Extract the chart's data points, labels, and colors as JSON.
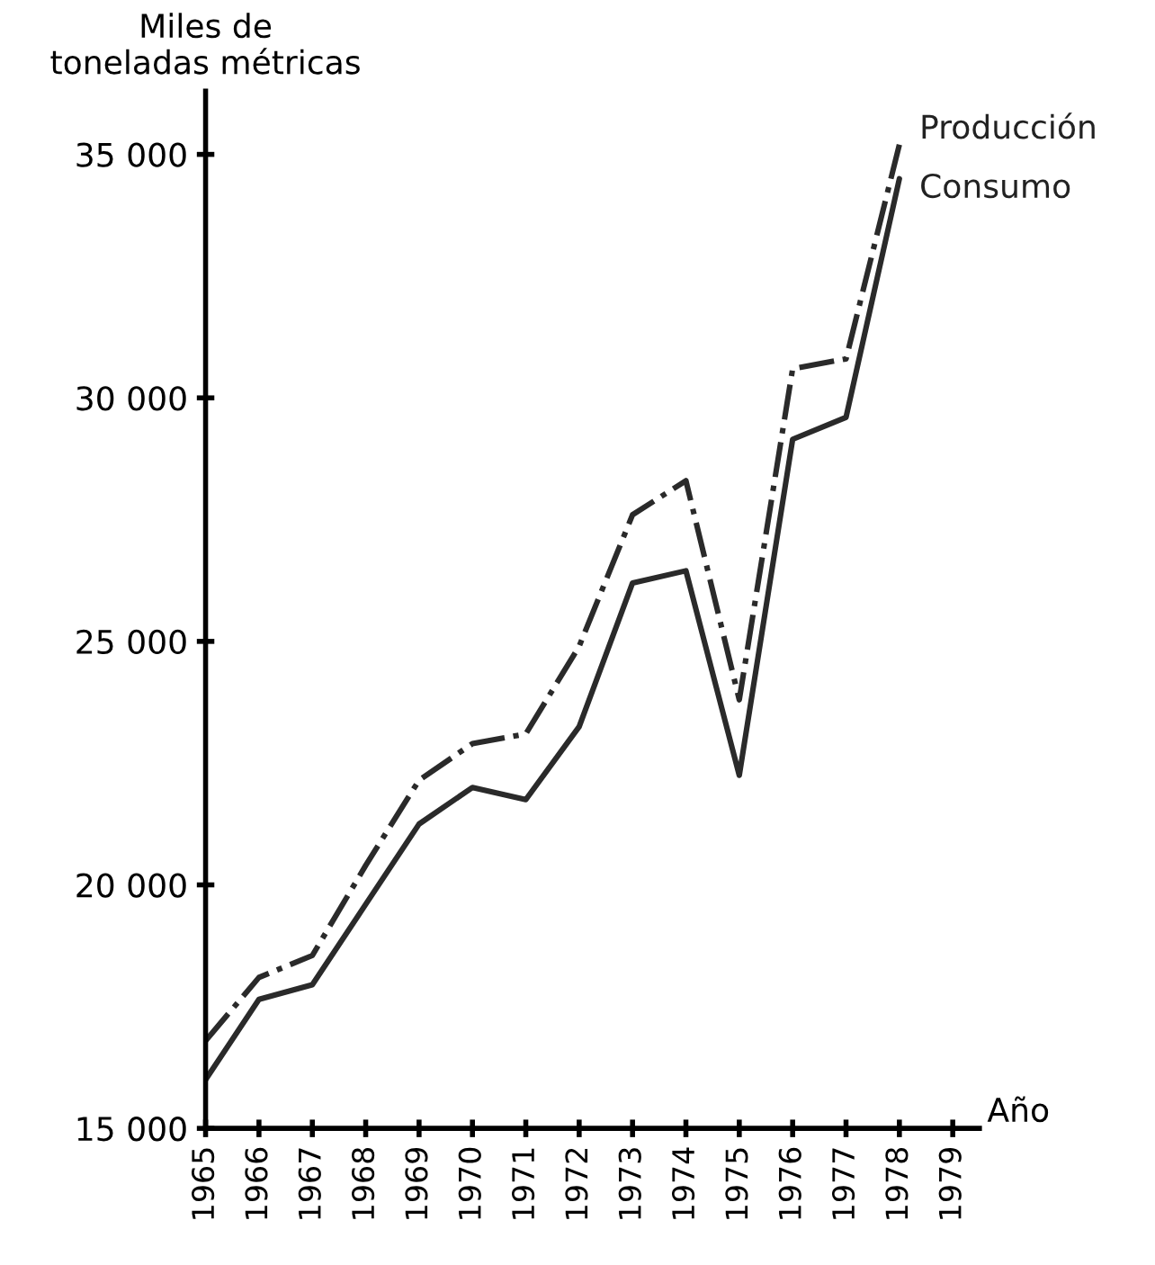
{
  "chart_data": {
    "type": "line",
    "ylabel": "Miles de\ntoneladas métricas",
    "xlabel": "Año",
    "x": [
      1965,
      1966,
      1967,
      1968,
      1969,
      1970,
      1971,
      1972,
      1973,
      1974,
      1975,
      1976,
      1977,
      1978
    ],
    "series": [
      {
        "name": "Producción",
        "color": "#2a2a2a",
        "line_style": "dashdot",
        "values": [
          16800,
          18100,
          18550,
          20400,
          22150,
          22900,
          23100,
          24900,
          27600,
          28300,
          23800,
          30600,
          30800,
          35200
        ]
      },
      {
        "name": "Consumo",
        "color": "#2a2a2a",
        "line_style": "solid",
        "values": [
          16000,
          17650,
          17950,
          19600,
          21250,
          22000,
          21750,
          23250,
          26200,
          26450,
          22250,
          29150,
          29600,
          34500
        ]
      }
    ],
    "xlim": [
      1965,
      1979.5
    ],
    "xticks": [
      1965,
      1966,
      1967,
      1968,
      1969,
      1970,
      1971,
      1972,
      1973,
      1974,
      1975,
      1976,
      1977,
      1978,
      1979
    ],
    "ylim": [
      15000,
      36300
    ],
    "yticks": [
      {
        "value": 15000,
        "label": "15 000"
      },
      {
        "value": 20000,
        "label": "20 000"
      },
      {
        "value": 25000,
        "label": "25 000"
      },
      {
        "value": 30000,
        "label": "30 000"
      },
      {
        "value": 35000,
        "label": "35 000"
      }
    ],
    "grid": false,
    "legend": false,
    "marker": "none"
  }
}
